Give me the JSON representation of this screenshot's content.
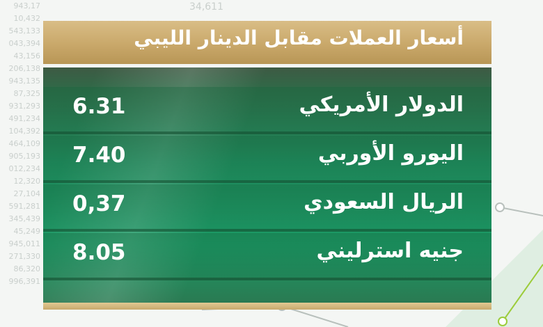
{
  "header": {
    "title": "أسعار العملات مقابل الدينار الليبي"
  },
  "rates": [
    {
      "currency": "الدولار الأمريكي",
      "value": "6.31"
    },
    {
      "currency": "اليورو الأوربي",
      "value": "7.40"
    },
    {
      "currency": "الريال السعودي",
      "value": "0,37"
    },
    {
      "currency": "جنيه استرليني",
      "value": "8.05"
    }
  ],
  "background": {
    "top_number": "34,611",
    "side_numbers": [
      "943,17",
      "10,432",
      "543,133",
      "043,394",
      "43,156",
      "206,138",
      "943,135",
      "87,325",
      "931,293",
      "491,234",
      "104,392",
      "464,109",
      "905,193",
      "012,234",
      "12,320",
      "27,104",
      "591,281",
      "345,439",
      "45,249",
      "945,011",
      "271,330",
      "86,320",
      "996,391"
    ]
  },
  "colors": {
    "gold": "#c9a86a",
    "green": "#1c9a66",
    "dark_green": "#2f6b48"
  }
}
